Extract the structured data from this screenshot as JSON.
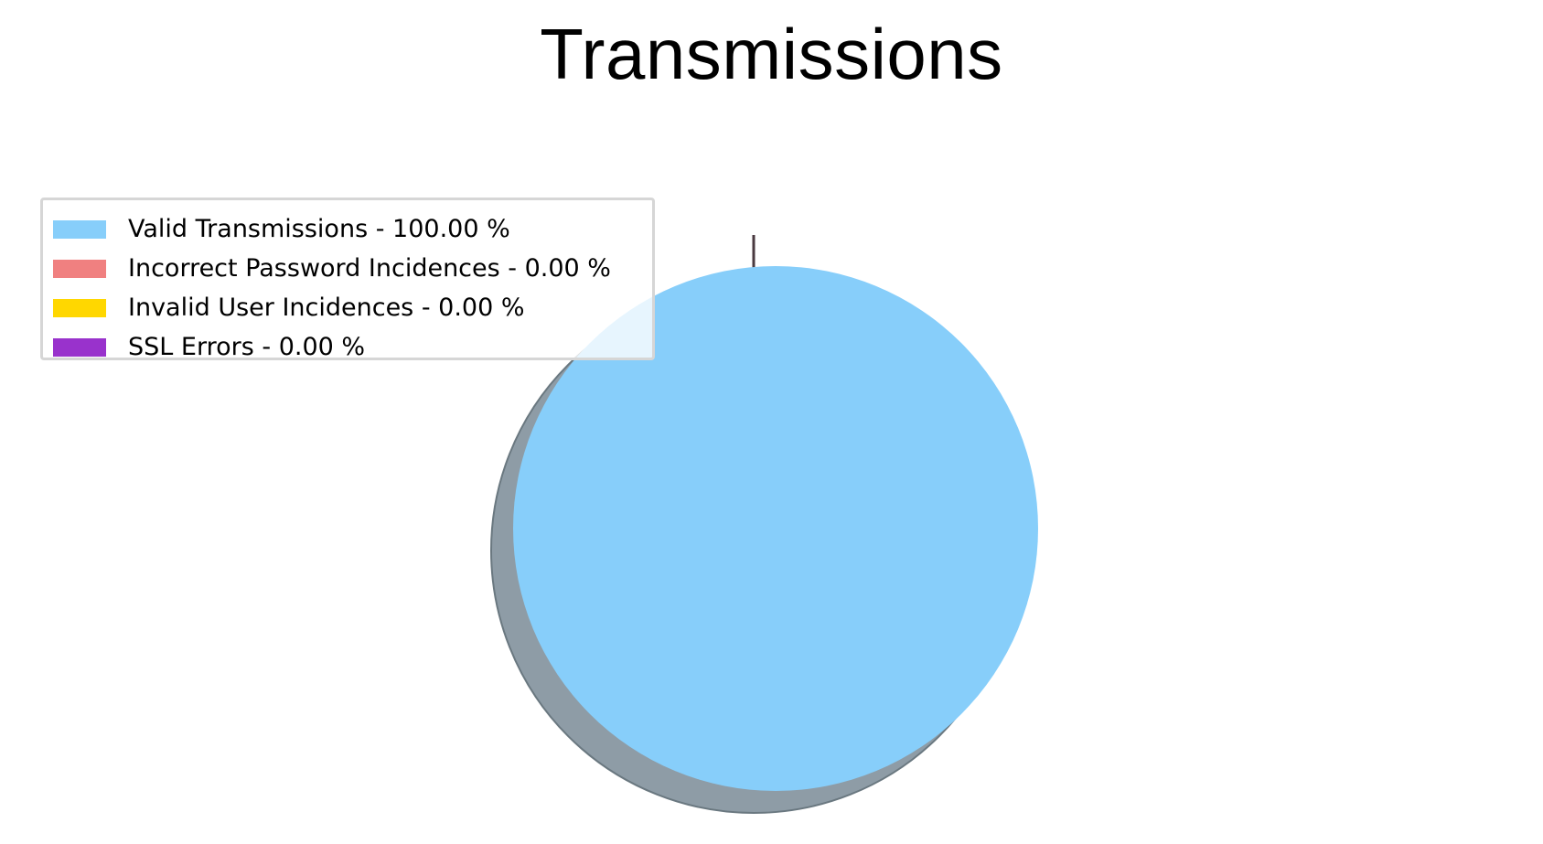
{
  "chart_data": {
    "type": "pie",
    "title": "Transmissions",
    "shadow": true,
    "legend_position": "upper-left",
    "slices": [
      {
        "label": "Valid Transmissions - 100.00 %",
        "value": 100.0,
        "color": "#87CEFA"
      },
      {
        "label": "Incorrect Password Incidences - 0.00 %",
        "value": 0.0,
        "color": "#F08080"
      },
      {
        "label": "Invalid User Incidences - 0.00 %",
        "value": 0.0,
        "color": "#FFD700"
      },
      {
        "label": "SSL Errors - 0.00 %",
        "value": 0.0,
        "color": "#9932CC"
      }
    ]
  }
}
